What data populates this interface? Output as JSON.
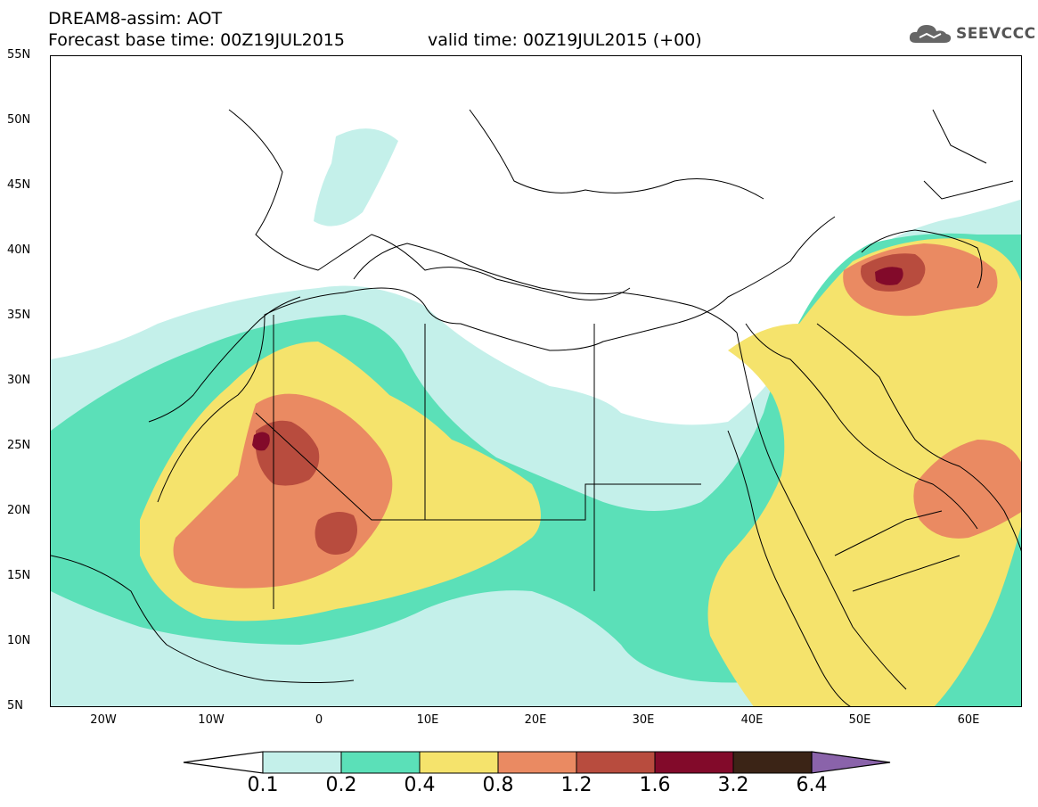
{
  "header": {
    "title_line1": "DREAM8-assim: AOT",
    "title_line2": "Forecast base time: 00Z19JUL2015",
    "valid_time": "valid time: 00Z19JUL2015 (+00)",
    "logo_text": "SEEVCCC"
  },
  "axes": {
    "lat_labels": [
      "55N",
      "50N",
      "45N",
      "40N",
      "35N",
      "30N",
      "25N",
      "20N",
      "15N",
      "10N",
      "5N"
    ],
    "lon_labels": [
      "20W",
      "10W",
      "0",
      "10E",
      "20E",
      "30E",
      "40E",
      "50E",
      "60E"
    ]
  },
  "legend": {
    "labels": [
      "0.1",
      "0.2",
      "0.4",
      "0.8",
      "1.2",
      "1.6",
      "3.2",
      "6.4"
    ],
    "colors": [
      "#c4f0ea",
      "#5be0b8",
      "#f5e36c",
      "#ea8a62",
      "#b84c3e",
      "#820a2a",
      "#3b2416",
      "#8a63aa"
    ]
  }
}
